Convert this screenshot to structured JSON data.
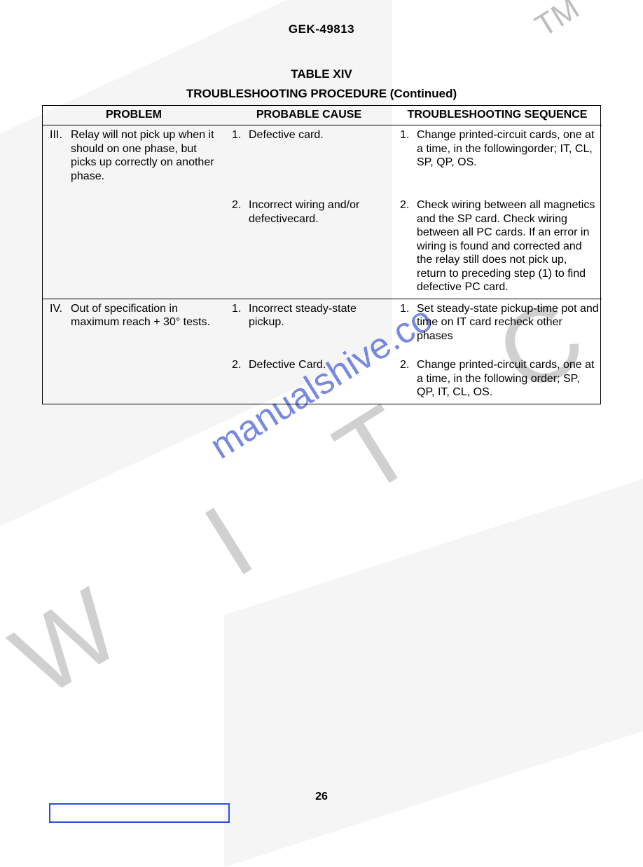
{
  "doc_id": "GEK-49813",
  "table_number": "TABLE XIV",
  "table_caption": "TROUBLESHOOTING PROCEDURE (Continued)",
  "page_number": "26",
  "watermark": {
    "url_text": "manualshive.co",
    "letters_text": "S W I T C H",
    "tm_text": "TM"
  },
  "columns": {
    "problem": "PROBLEM",
    "cause": "PROBABLE CAUSE",
    "sequence": "TROUBLESHOOTING SEQUENCE"
  },
  "sections": [
    {
      "roman": "III.",
      "problem": "Relay will not pick up when it should on one phase, but picks up correctly on another phase.",
      "rows": [
        {
          "cause_n": "1.",
          "cause": "Defective card.",
          "seq_n": "1.",
          "seq": "Change printed-circuit cards, one at a time, in the followingorder; IT, CL, SP, QP, OS."
        },
        {
          "cause_n": "2.",
          "cause": "Incorrect wiring and/or defectivecard.",
          "seq_n": "2.",
          "seq": "Check wiring between all magnetics and the SP card. Check wiring between all PC cards. If an error in wiring is found and corrected and the relay still does not pick up, return to preceding step (1) to find defective PC card."
        }
      ]
    },
    {
      "roman": "IV.",
      "problem": "Out of specification in maximum reach + 30° tests.",
      "rows": [
        {
          "cause_n": "1.",
          "cause": "Incorrect steady-state pickup.",
          "seq_n": "1.",
          "seq": "Set steady-state pickup-time pot and time on IT card recheck other phases"
        },
        {
          "cause_n": "2.",
          "cause": "Defective Card.",
          "seq_n": "2.",
          "seq": "Change printed-circuit cards, one at a time, in the following order; SP, QP, IT, CL, OS."
        }
      ]
    }
  ]
}
